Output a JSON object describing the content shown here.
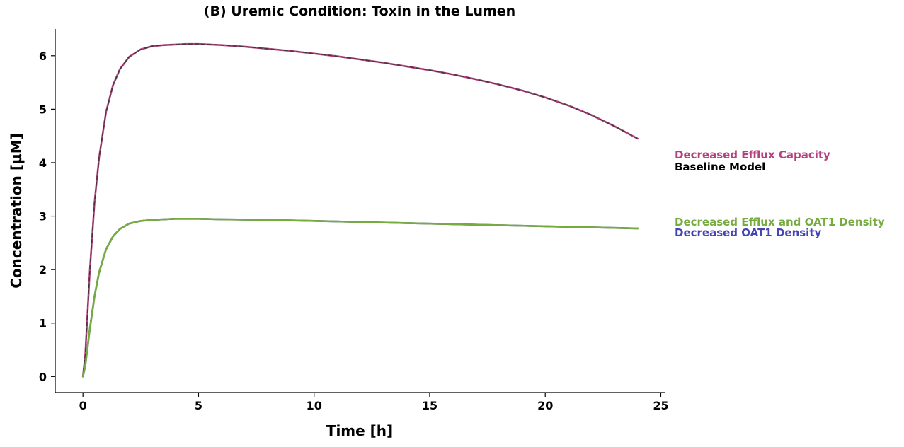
{
  "chart_data": {
    "type": "line",
    "title": "(B) Uremic Condition: Toxin in the Lumen",
    "xlabel": "Time [h]",
    "ylabel": "Concentration [µM]",
    "xlim": [
      -1.2,
      25.2
    ],
    "ylim": [
      -0.3,
      6.5
    ],
    "xticks": [
      0,
      5,
      10,
      15,
      20,
      25
    ],
    "yticks": [
      0,
      1,
      2,
      3,
      4,
      5,
      6
    ],
    "grid": false,
    "legend_placement": "right",
    "series": [
      {
        "name": "Decreased Efflux Capacity",
        "color": "#b5407e",
        "dash": false,
        "x": [
          0,
          0.1,
          0.2,
          0.3,
          0.5,
          0.7,
          1.0,
          1.3,
          1.6,
          2.0,
          2.5,
          3.0,
          3.5,
          4.0,
          4.5,
          5.0,
          6.0,
          7.0,
          8.0,
          9.0,
          10.0,
          11.0,
          12.0,
          13.0,
          14.0,
          15.0,
          16.0,
          17.0,
          18.0,
          19.0,
          20.0,
          21.0,
          22.0,
          23.0,
          24.0
        ],
        "y": [
          0,
          0.4,
          1.2,
          2.0,
          3.25,
          4.1,
          4.95,
          5.45,
          5.75,
          5.98,
          6.12,
          6.18,
          6.2,
          6.21,
          6.22,
          6.22,
          6.2,
          6.17,
          6.13,
          6.09,
          6.04,
          5.99,
          5.93,
          5.87,
          5.8,
          5.73,
          5.65,
          5.56,
          5.46,
          5.35,
          5.22,
          5.07,
          4.89,
          4.68,
          4.45
        ]
      },
      {
        "name": "Baseline Model",
        "color": "#3a3a3a",
        "dash": true,
        "x": [
          0,
          0.1,
          0.2,
          0.3,
          0.5,
          0.7,
          1.0,
          1.3,
          1.6,
          2.0,
          2.5,
          3.0,
          3.5,
          4.0,
          4.5,
          5.0,
          6.0,
          7.0,
          8.0,
          9.0,
          10.0,
          11.0,
          12.0,
          13.0,
          14.0,
          15.0,
          16.0,
          17.0,
          18.0,
          19.0,
          20.0,
          21.0,
          22.0,
          23.0,
          24.0
        ],
        "y": [
          0,
          0.4,
          1.2,
          2.0,
          3.25,
          4.1,
          4.95,
          5.45,
          5.75,
          5.98,
          6.12,
          6.18,
          6.2,
          6.21,
          6.22,
          6.22,
          6.2,
          6.17,
          6.13,
          6.09,
          6.04,
          5.99,
          5.93,
          5.87,
          5.8,
          5.73,
          5.65,
          5.56,
          5.46,
          5.35,
          5.22,
          5.07,
          4.89,
          4.68,
          4.45
        ]
      },
      {
        "name": "Decreased Efflux and OAT1 Density",
        "color": "#76ab3f",
        "dash": false,
        "x": [
          0,
          0.1,
          0.2,
          0.3,
          0.5,
          0.7,
          1.0,
          1.3,
          1.6,
          2.0,
          2.5,
          3.0,
          3.5,
          4.0,
          4.5,
          5.0,
          6.0,
          8.0,
          10.0,
          12.0,
          14.0,
          16.0,
          18.0,
          20.0,
          22.0,
          24.0
        ],
        "y": [
          0,
          0.2,
          0.55,
          0.9,
          1.5,
          1.95,
          2.38,
          2.62,
          2.76,
          2.86,
          2.91,
          2.93,
          2.94,
          2.95,
          2.95,
          2.95,
          2.94,
          2.93,
          2.91,
          2.89,
          2.87,
          2.85,
          2.83,
          2.81,
          2.79,
          2.77
        ]
      },
      {
        "name": "Decreased OAT1 Density",
        "color": "#4444b5",
        "dash": false,
        "x": [
          0,
          0.1,
          0.2,
          0.3,
          0.5,
          0.7,
          1.0,
          1.3,
          1.6,
          2.0,
          2.5,
          3.0,
          3.5,
          4.0,
          4.5,
          5.0,
          6.0,
          8.0,
          10.0,
          12.0,
          14.0,
          16.0,
          18.0,
          20.0,
          22.0,
          24.0
        ],
        "y": [
          0,
          0.2,
          0.55,
          0.9,
          1.5,
          1.95,
          2.38,
          2.62,
          2.76,
          2.86,
          2.91,
          2.93,
          2.94,
          2.95,
          2.95,
          2.95,
          2.94,
          2.93,
          2.91,
          2.89,
          2.87,
          2.85,
          2.83,
          2.81,
          2.79,
          2.77
        ]
      }
    ]
  }
}
